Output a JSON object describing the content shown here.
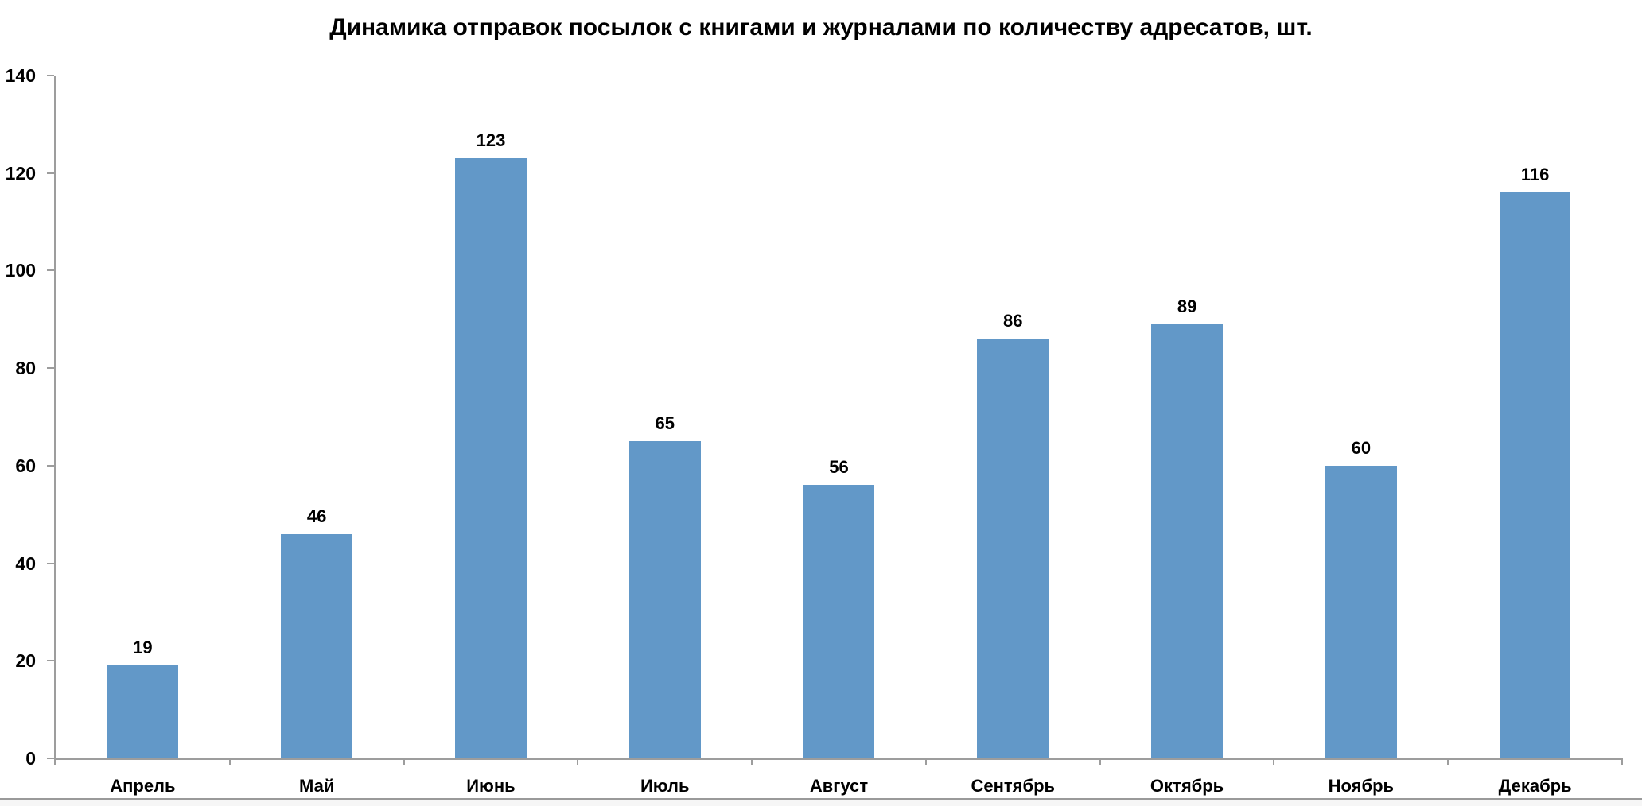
{
  "chart_data": {
    "type": "bar",
    "title": "Динамика отправок посылок с книгами и журналами по количеству адресатов, шт.",
    "categories": [
      "Апрель",
      "Май",
      "Июнь",
      "Июль",
      "Август",
      "Сентябрь",
      "Октябрь",
      "Ноябрь",
      "Декабрь"
    ],
    "values": [
      19,
      46,
      123,
      65,
      56,
      86,
      89,
      60,
      116
    ],
    "xlabel": "",
    "ylabel": "",
    "ylim": [
      0,
      140
    ],
    "yticks": [
      0,
      20,
      40,
      60,
      80,
      100,
      120,
      140
    ],
    "grid": false,
    "legend": "none",
    "data_labels": true,
    "bar_color": "#6298c8",
    "axis_color": "#9d9d9d",
    "label_color": "#000000"
  }
}
